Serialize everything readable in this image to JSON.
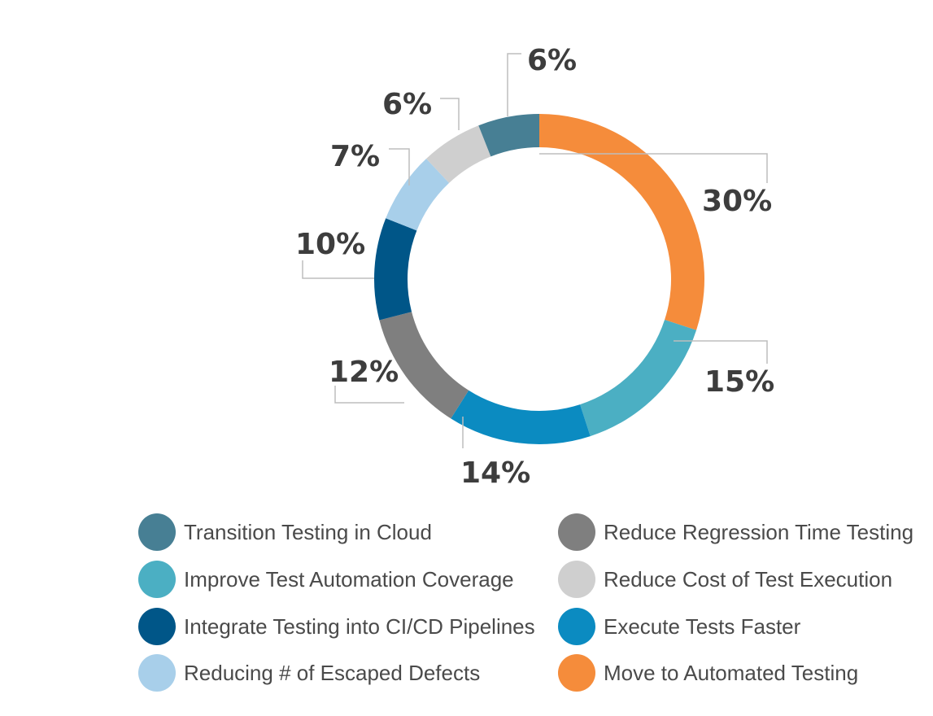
{
  "chart_data": {
    "type": "pie",
    "donut": true,
    "title": "",
    "slices": [
      {
        "label": "Move to Automated Testing",
        "value": 30,
        "display": "30%",
        "color": "#F58C3B"
      },
      {
        "label": "Improve Test Automation Coverage",
        "value": 15,
        "display": "15%",
        "color": "#4BAFC3"
      },
      {
        "label": "Execute Tests Faster",
        "value": 14,
        "display": "14%",
        "color": "#0B8BC1"
      },
      {
        "label": "Reduce Regression Time Testing",
        "value": 12,
        "display": "12%",
        "color": "#7F7F7F"
      },
      {
        "label": "Integrate Testing into CI/CD Pipelines",
        "value": 10,
        "display": "10%",
        "color": "#005688"
      },
      {
        "label": "Reducing # of Escaped Defects",
        "value": 7,
        "display": "7%",
        "color": "#A8CFEA"
      },
      {
        "label": "Reduce Cost of Test Execution",
        "value": 6,
        "display": "6%",
        "color": "#CFCFCF"
      },
      {
        "label": "Transition Testing in Cloud",
        "value": 6,
        "display": "6%",
        "color": "#477F94"
      }
    ],
    "start_angle": "12 o'clock",
    "direction": "clockwise",
    "legend_placement": "bottom",
    "legend": {
      "left_column": [
        {
          "label": "Transition Testing in Cloud",
          "color": "#477F94"
        },
        {
          "label": "Improve Test Automation Coverage",
          "color": "#4BAFC3"
        },
        {
          "label": "Integrate Testing into CI/CD Pipelines",
          "color": "#005688"
        },
        {
          "label": "Reducing # of Escaped Defects",
          "color": "#A8CFEA"
        }
      ],
      "right_column": [
        {
          "label": "Reduce Regression Time Testing",
          "color": "#7F7F7F"
        },
        {
          "label": "Reduce Cost of Test Execution",
          "color": "#CFCFCF"
        },
        {
          "label": "Execute Tests Faster",
          "color": "#0B8BC1"
        },
        {
          "label": "Move to Automated Testing",
          "color": "#F58C3B"
        }
      ]
    }
  }
}
